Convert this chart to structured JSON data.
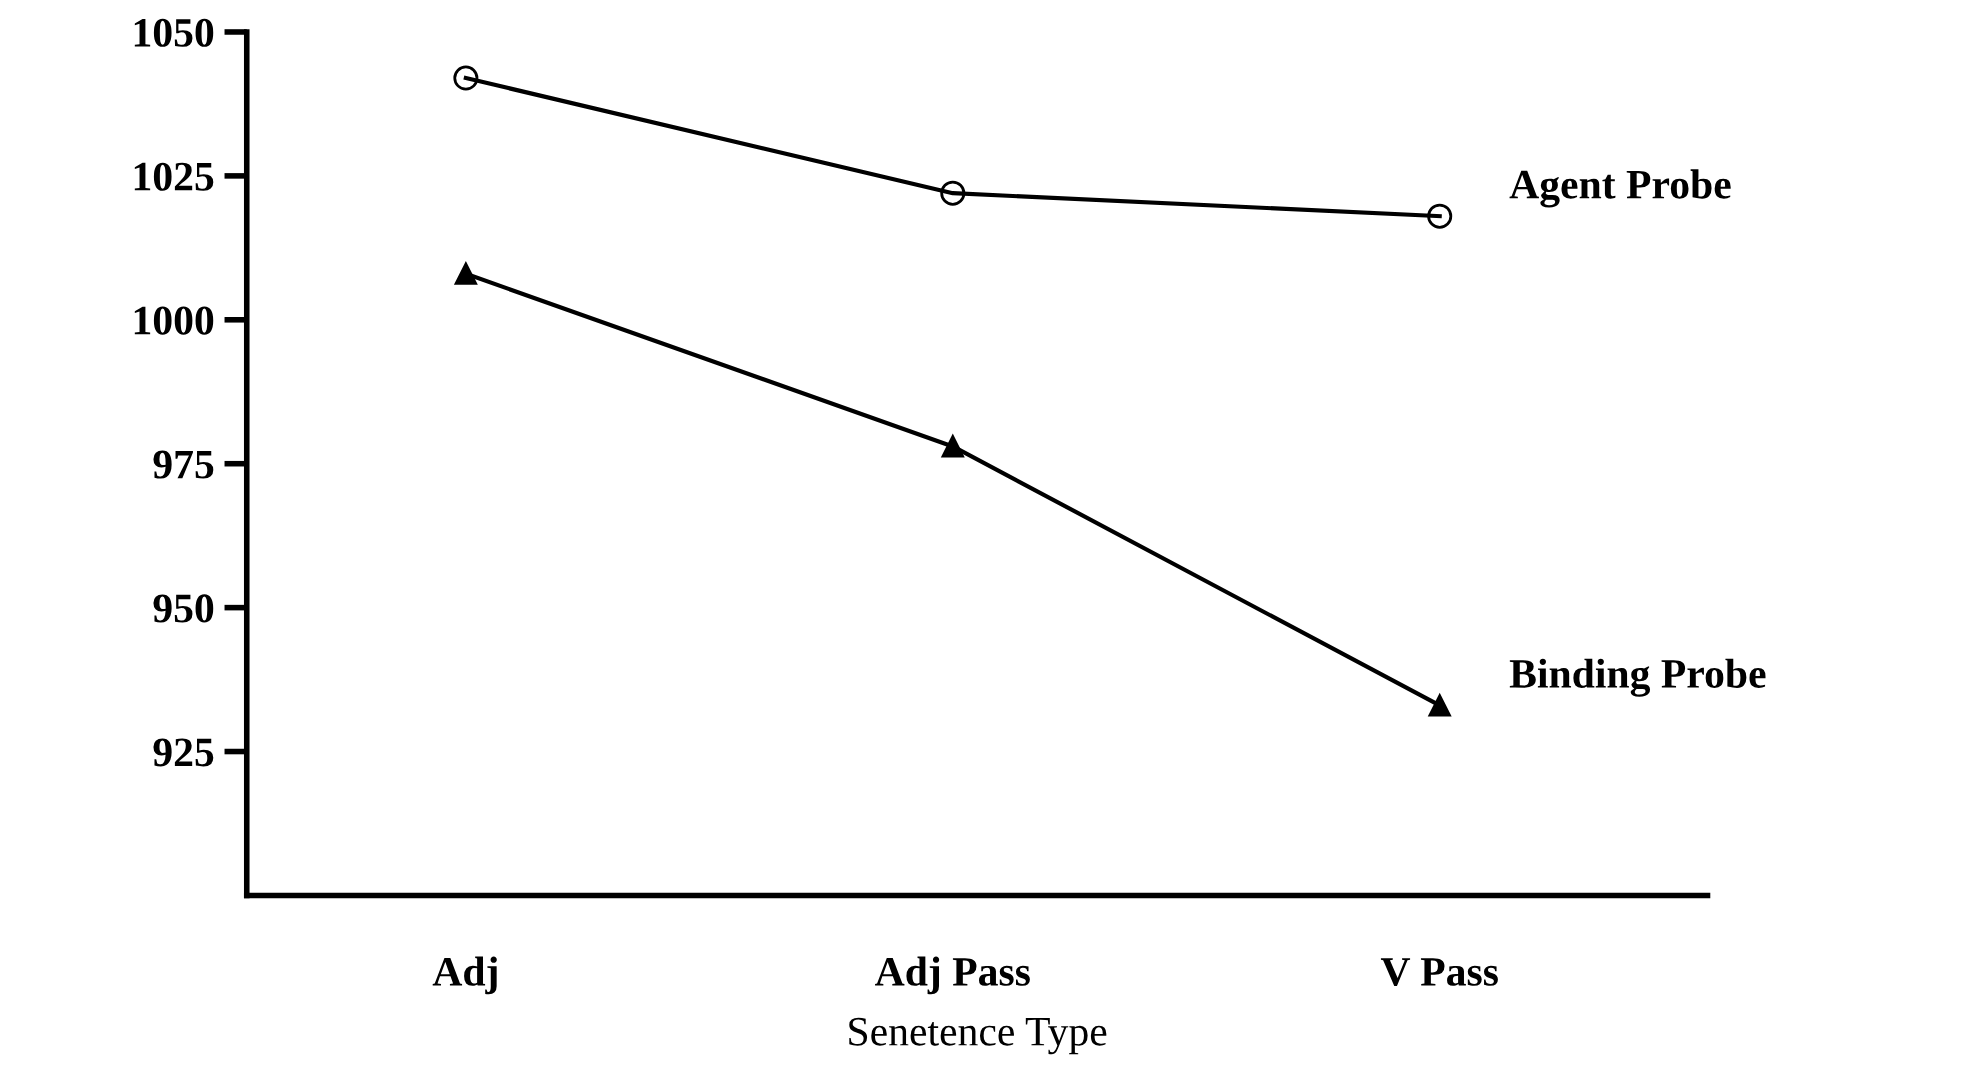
{
  "chart_data": {
    "type": "line",
    "xlabel": "Senetence Type",
    "categories": [
      "Adj",
      "Adj Pass",
      "V Pass"
    ],
    "series": [
      {
        "name": "Agent Probe",
        "color": "#000000",
        "marker": "circle",
        "values": [
          1042,
          1022,
          1018
        ]
      },
      {
        "name": "Binding Probe",
        "color": "#000000",
        "marker": "triangle",
        "values": [
          1008,
          978,
          933
        ]
      }
    ],
    "ylim": [
      900,
      1050
    ],
    "yticks": [
      925,
      950,
      975,
      1000,
      1025,
      1050
    ],
    "grid": false,
    "legend": false,
    "line_style": "solid"
  }
}
